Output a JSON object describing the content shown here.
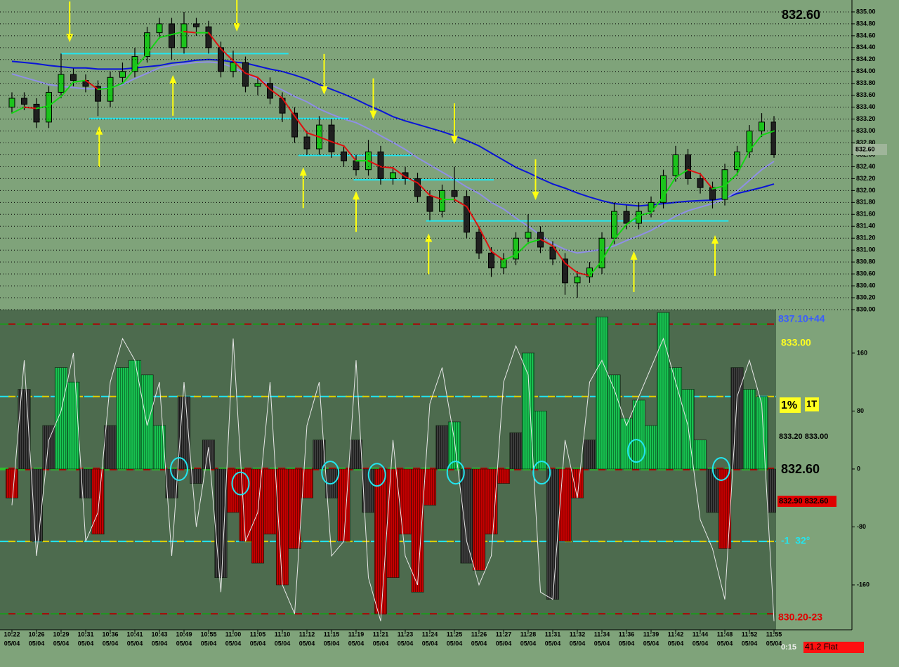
{
  "chart_data": [
    {
      "type": "candlestick",
      "xlim": [
        -0.97,
        62.17
      ],
      "ylim": [
        830.0,
        835.2
      ],
      "yticks": [
        {
          "value": 830.0,
          "label": "830.00"
        },
        {
          "value": 830.2,
          "label": "830.20"
        },
        {
          "value": 830.4,
          "label": "830.40"
        },
        {
          "value": 830.6,
          "label": "830.60"
        },
        {
          "value": 830.8,
          "label": "830.80"
        },
        {
          "value": 831.0,
          "label": "831.00"
        },
        {
          "value": 831.2,
          "label": "831.20"
        },
        {
          "value": 831.4,
          "label": "831.40"
        },
        {
          "value": 831.6,
          "label": "831.60"
        },
        {
          "value": 831.8,
          "label": "831.80"
        },
        {
          "value": 832.0,
          "label": "832.00"
        },
        {
          "value": 832.2,
          "label": "832.20"
        },
        {
          "value": 832.4,
          "label": "832.40"
        },
        {
          "value": 832.6,
          "label": "832.60"
        },
        {
          "value": 832.8,
          "label": "832.80"
        },
        {
          "value": 833.0,
          "label": "833.00"
        },
        {
          "value": 833.2,
          "label": "833.20"
        },
        {
          "value": 833.4,
          "label": "833.40"
        },
        {
          "value": 833.6,
          "label": "833.60"
        },
        {
          "value": 833.8,
          "label": "833.80"
        },
        {
          "value": 834.0,
          "label": "834.00"
        },
        {
          "value": 834.2,
          "label": "834.20"
        },
        {
          "value": 834.4,
          "label": "834.40"
        },
        {
          "value": 834.6,
          "label": "834.60"
        },
        {
          "value": 834.8,
          "label": "834.80"
        },
        {
          "value": 835.0,
          "label": "835.00"
        }
      ],
      "grid": true,
      "xticks": [
        {
          "value": 0,
          "label": "10:22"
        },
        {
          "value": 2,
          "label": "10:26"
        },
        {
          "value": 4,
          "label": "10:29"
        },
        {
          "value": 6,
          "label": "10:31"
        },
        {
          "value": 8,
          "label": "10:36"
        },
        {
          "value": 10,
          "label": "10:41"
        },
        {
          "value": 12,
          "label": "10:43"
        },
        {
          "value": 14,
          "label": "10:49"
        },
        {
          "value": 16,
          "label": "10:55"
        },
        {
          "value": 18,
          "label": "11:00"
        },
        {
          "value": 20,
          "label": "11:05"
        },
        {
          "value": 22,
          "label": "11:10"
        },
        {
          "value": 24,
          "label": "11:12"
        },
        {
          "value": 26,
          "label": "11:15"
        },
        {
          "value": 28,
          "label": "11:19"
        },
        {
          "value": 30,
          "label": "11:21"
        },
        {
          "value": 32,
          "label": "11:23"
        },
        {
          "value": 34,
          "label": "11:24"
        },
        {
          "value": 36,
          "label": "11:25"
        },
        {
          "value": 38,
          "label": "11:26"
        },
        {
          "value": 40,
          "label": "11:27"
        },
        {
          "value": 42,
          "label": "11:28"
        },
        {
          "value": 44,
          "label": "11:31"
        },
        {
          "value": 46,
          "label": "11:32"
        },
        {
          "value": 48,
          "label": "11:34"
        },
        {
          "value": 50,
          "label": "11:36"
        },
        {
          "value": 52,
          "label": "11:39"
        },
        {
          "value": 54,
          "label": "11:42"
        },
        {
          "value": 56,
          "label": "11:44"
        },
        {
          "value": 58,
          "label": "11:48"
        },
        {
          "value": 60,
          "label": "11:52"
        },
        {
          "value": 62,
          "label": "11:55"
        }
      ],
      "xtick_dates": [
        "05/04",
        "05/04",
        "05/04",
        "05/04",
        "05/04",
        "05/04",
        "05/04",
        "05/04",
        "05/04",
        "05/04",
        "05/04",
        "05/04",
        "05/04",
        "05/04",
        "05/04",
        "05/04",
        "05/04",
        "05/04",
        "05/04",
        "05/04",
        "05/04",
        "05/04",
        "05/04",
        "05/04",
        "05/04",
        "05/04",
        "05/04",
        "05/04",
        "05/04",
        "05/04",
        "05/04",
        "05/04"
      ],
      "up_color": "#1cc31c",
      "down_color": "#202020",
      "open": [
        833.4,
        833.55,
        833.45,
        833.15,
        833.65,
        833.95,
        833.85,
        833.75,
        833.5,
        833.9,
        834.0,
        834.25,
        834.65,
        834.8,
        834.4,
        834.8,
        834.75,
        834.4,
        834.0,
        834.15,
        833.75,
        833.8,
        833.55,
        833.3,
        832.9,
        832.7,
        833.1,
        832.65,
        832.5,
        832.35,
        832.65,
        832.2,
        832.3,
        832.2,
        831.9,
        831.65,
        832.0,
        831.9,
        831.3,
        830.95,
        830.7,
        830.85,
        831.2,
        831.3,
        831.05,
        830.85,
        830.45,
        830.55,
        830.7,
        831.2,
        831.65,
        831.45,
        831.65,
        831.8,
        832.25,
        832.6,
        832.2,
        832.05,
        831.85,
        832.35,
        832.65,
        833.0,
        833.15
      ],
      "high": [
        833.65,
        833.65,
        833.55,
        833.75,
        834.3,
        834.05,
        833.95,
        833.85,
        834.0,
        834.15,
        834.4,
        834.75,
        834.9,
        834.9,
        835.0,
        834.9,
        834.85,
        834.5,
        834.35,
        834.25,
        833.9,
        833.9,
        833.65,
        833.4,
        833.0,
        833.25,
        833.2,
        832.75,
        832.6,
        832.85,
        832.75,
        832.4,
        832.4,
        832.3,
        832.0,
        832.1,
        832.4,
        832.0,
        831.4,
        831.05,
        830.95,
        831.3,
        831.6,
        831.4,
        831.15,
        830.95,
        830.65,
        830.8,
        831.3,
        831.8,
        831.75,
        831.8,
        831.9,
        832.35,
        832.75,
        832.7,
        832.3,
        832.15,
        832.45,
        832.75,
        833.1,
        833.3,
        833.25
      ],
      "low": [
        833.3,
        833.35,
        833.05,
        833.05,
        833.55,
        833.75,
        833.65,
        833.25,
        833.4,
        833.8,
        833.9,
        834.15,
        834.55,
        834.2,
        834.3,
        834.6,
        834.3,
        833.9,
        833.9,
        833.65,
        833.6,
        833.45,
        833.15,
        832.8,
        832.6,
        832.6,
        832.55,
        832.4,
        832.25,
        832.25,
        832.1,
        832.1,
        832.1,
        831.8,
        831.5,
        831.55,
        831.8,
        831.2,
        830.85,
        830.55,
        830.6,
        830.75,
        831.1,
        830.95,
        830.75,
        830.25,
        830.2,
        830.45,
        830.6,
        831.1,
        831.35,
        831.35,
        831.55,
        831.7,
        832.15,
        832.1,
        831.95,
        831.7,
        831.75,
        832.25,
        832.55,
        832.9,
        832.55
      ],
      "close": [
        833.55,
        833.45,
        833.15,
        833.65,
        833.95,
        833.85,
        833.75,
        833.5,
        833.9,
        834.0,
        834.25,
        834.65,
        834.8,
        834.4,
        834.8,
        834.75,
        834.4,
        834.0,
        834.15,
        833.75,
        833.8,
        833.55,
        833.3,
        832.9,
        832.7,
        833.1,
        832.65,
        832.5,
        832.35,
        832.65,
        832.2,
        832.3,
        832.2,
        831.9,
        831.65,
        832.0,
        831.9,
        831.3,
        830.95,
        830.7,
        830.85,
        831.2,
        831.3,
        831.05,
        830.85,
        830.45,
        830.55,
        830.7,
        831.2,
        831.65,
        831.45,
        831.65,
        831.8,
        832.25,
        832.6,
        832.2,
        832.05,
        831.85,
        832.35,
        832.65,
        833.0,
        833.15,
        832.6
      ],
      "lines": [
        {
          "color": "#0a14d8",
          "values": [
            834.17,
            834.15,
            834.13,
            834.1,
            834.08,
            834.06,
            834.06,
            834.04,
            834.04,
            834.04,
            834.06,
            834.08,
            834.1,
            834.14,
            834.16,
            834.19,
            834.2,
            834.19,
            834.16,
            834.14,
            834.09,
            834.04,
            834.0,
            833.94,
            833.87,
            833.78,
            833.7,
            833.62,
            833.53,
            833.43,
            833.34,
            833.24,
            833.17,
            833.11,
            833.05,
            832.99,
            832.92,
            832.84,
            832.75,
            832.63,
            832.51,
            832.39,
            832.3,
            832.2,
            832.11,
            832.04,
            831.96,
            831.89,
            831.83,
            831.78,
            831.76,
            831.74,
            831.76,
            831.78,
            831.8,
            831.82,
            831.83,
            831.84,
            831.87,
            831.95,
            832.0,
            832.05,
            832.11
          ]
        },
        {
          "color": "#8f8fe6",
          "values": [
            833.96,
            833.9,
            833.84,
            833.78,
            833.75,
            833.73,
            833.71,
            833.71,
            833.74,
            833.78,
            833.88,
            833.97,
            834.06,
            834.1,
            834.13,
            834.15,
            834.16,
            834.14,
            834.07,
            833.96,
            833.87,
            833.78,
            833.69,
            833.58,
            833.49,
            833.37,
            833.28,
            833.2,
            833.14,
            833.04,
            832.92,
            832.81,
            832.69,
            832.55,
            832.43,
            832.31,
            832.19,
            832.06,
            831.95,
            831.8,
            831.69,
            831.54,
            831.4,
            831.25,
            831.11,
            831.01,
            830.95,
            830.98,
            831.01,
            831.07,
            831.16,
            831.24,
            831.33,
            831.45,
            831.57,
            831.66,
            831.72,
            831.78,
            831.86,
            831.99,
            832.17,
            832.35,
            832.49
          ]
        }
      ],
      "fast_line": {
        "up_color": "#13d613",
        "down_color": "#e01010",
        "values": [
          833.3,
          833.4,
          833.38,
          833.42,
          833.58,
          833.82,
          833.85,
          833.7,
          833.72,
          833.8,
          834.05,
          834.3,
          834.57,
          834.62,
          834.67,
          834.65,
          834.65,
          834.38,
          834.18,
          833.97,
          833.9,
          833.7,
          833.55,
          833.25,
          832.97,
          832.9,
          832.82,
          832.75,
          832.5,
          832.5,
          832.4,
          832.38,
          832.23,
          832.13,
          831.92,
          831.85,
          831.85,
          831.73,
          831.38,
          830.98,
          830.83,
          830.92,
          831.12,
          831.18,
          831.07,
          830.78,
          830.62,
          830.57,
          830.82,
          831.18,
          831.43,
          831.58,
          831.63,
          831.9,
          832.22,
          832.35,
          832.28,
          832.03,
          832.08,
          832.28,
          832.67,
          832.93,
          833.0
        ]
      },
      "levels_color": "#22e6f0",
      "levels": [
        {
          "value": 834.3,
          "from": 4.0,
          "to": 22.5
        },
        {
          "value": 833.21,
          "from": 6.3,
          "to": 27.4
        },
        {
          "value": 832.59,
          "from": 23.3,
          "to": 32.5
        },
        {
          "value": 832.18,
          "from": 27.8,
          "to": 39.2
        },
        {
          "value": 831.49,
          "from": 33.7,
          "to": 58.3
        }
      ],
      "arrows_color": "#ffff10",
      "arrows": [
        {
          "x": 4.7,
          "y": 834.49,
          "dir": "down"
        },
        {
          "x": 18.3,
          "y": 834.67,
          "dir": "down"
        },
        {
          "x": 25.4,
          "y": 833.61,
          "dir": "down"
        },
        {
          "x": 29.4,
          "y": 833.2,
          "dir": "down"
        },
        {
          "x": 36.0,
          "y": 832.78,
          "dir": "down"
        },
        {
          "x": 42.6,
          "y": 831.84,
          "dir": "down"
        },
        {
          "x": 7.1,
          "y": 833.08,
          "dir": "up"
        },
        {
          "x": 13.1,
          "y": 833.94,
          "dir": "up"
        },
        {
          "x": 23.7,
          "y": 832.39,
          "dir": "up"
        },
        {
          "x": 28.0,
          "y": 831.99,
          "dir": "up"
        },
        {
          "x": 33.9,
          "y": 831.28,
          "dir": "up"
        },
        {
          "x": 50.6,
          "y": 830.98,
          "dir": "up"
        },
        {
          "x": 57.2,
          "y": 831.25,
          "dir": "up"
        }
      ],
      "last_price": "832.60",
      "axis_price_label": "832.60"
    },
    {
      "type": "oscillator",
      "xlim": [
        -0.97,
        62.17
      ],
      "ylim": [
        -222,
        220
      ],
      "yticks": [
        160,
        80,
        0,
        -80,
        -160
      ],
      "ref_lines": [
        200,
        100,
        0,
        -100,
        -200
      ],
      "positive_color": "#18c050",
      "negative_color": "#c40000",
      "transition_color": "#3c3c3c",
      "values": [
        -40,
        110,
        -100,
        60,
        140,
        120,
        -40,
        -90,
        60,
        140,
        150,
        130,
        60,
        -40,
        100,
        -20,
        40,
        -150,
        -60,
        -100,
        -130,
        -90,
        -160,
        -110,
        -40,
        40,
        -40,
        -100,
        40,
        -60,
        -200,
        -150,
        -90,
        -170,
        -50,
        60,
        65,
        -130,
        -140,
        -90,
        -20,
        50,
        160,
        80,
        -180,
        -100,
        -40,
        40,
        210,
        130,
        70,
        95,
        60,
        216,
        140,
        110,
        40,
        -60,
        -110,
        140,
        110,
        100,
        -60
      ],
      "line": {
        "color": "#e8e8e8",
        "values": [
          -50,
          150,
          -120,
          40,
          80,
          160,
          -100,
          -60,
          120,
          180,
          150,
          60,
          120,
          -120,
          120,
          -80,
          30,
          -170,
          180,
          -100,
          -60,
          120,
          -160,
          -200,
          60,
          120,
          -120,
          -100,
          150,
          -150,
          -210,
          40,
          -120,
          -160,
          90,
          140,
          40,
          -100,
          -160,
          -120,
          120,
          170,
          130,
          -170,
          -180,
          40,
          -40,
          120,
          150,
          110,
          60,
          100,
          140,
          180,
          120,
          60,
          -70,
          -110,
          -180,
          100,
          150,
          90,
          -210
        ]
      },
      "circles_color": "#22e6f0",
      "circles": [
        {
          "x": 13.6,
          "y": 0
        },
        {
          "x": 18.6,
          "y": -20
        },
        {
          "x": 25.9,
          "y": -5
        },
        {
          "x": 29.7,
          "y": -8
        },
        {
          "x": 36.1,
          "y": -5
        },
        {
          "x": 43.1,
          "y": -5
        },
        {
          "x": 50.8,
          "y": 25
        },
        {
          "x": 57.7,
          "y": 0
        }
      ],
      "annotations": [
        "837.10+44",
        "833.00",
        "1%",
        "1T",
        "833.20 833.00",
        "832.60",
        "832.90 832.60",
        "-1  32°",
        "830.20-23"
      ]
    }
  ],
  "status": {
    "timer": "0:15",
    "state": "41.2 Flat"
  }
}
